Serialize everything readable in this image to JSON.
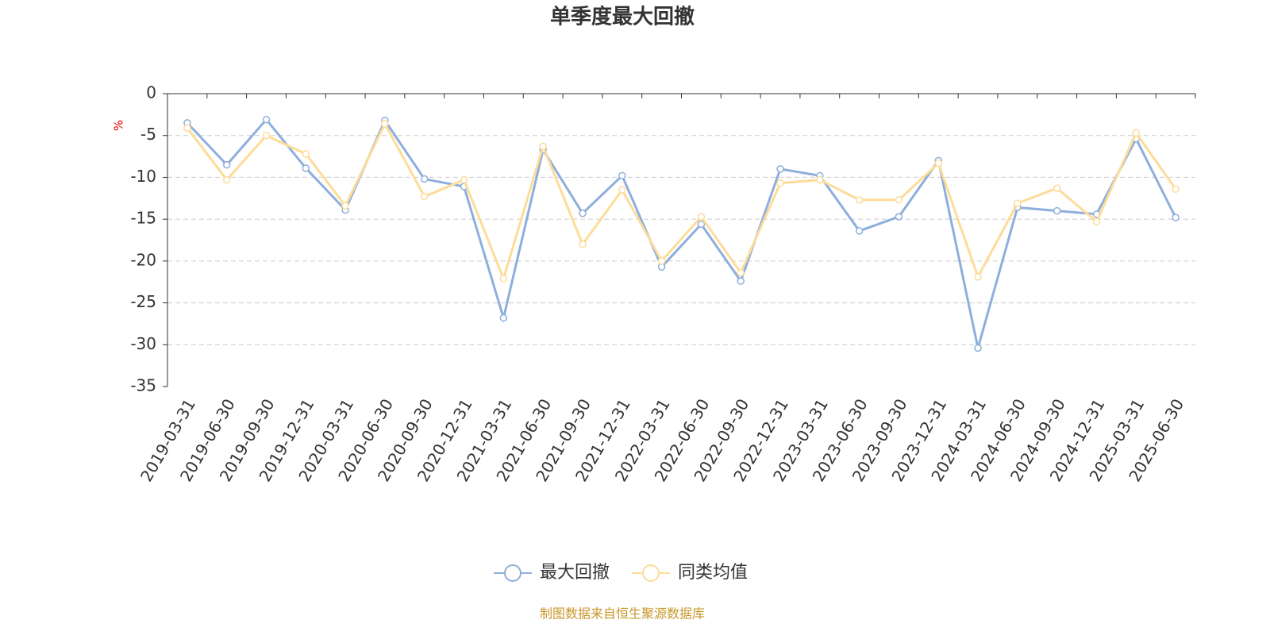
{
  "chart_data": {
    "type": "line",
    "title": "单季度最大回撤",
    "y_label": "%",
    "source": "制图数据来自恒生聚源数据库",
    "categories": [
      "2019-03-31",
      "2019-06-30",
      "2019-09-30",
      "2019-12-31",
      "2020-03-31",
      "2020-06-30",
      "2020-09-30",
      "2020-12-31",
      "2021-03-31",
      "2021-06-30",
      "2021-09-30",
      "2021-12-31",
      "2022-03-31",
      "2022-06-30",
      "2022-09-30",
      "2022-12-31",
      "2023-03-31",
      "2023-06-30",
      "2023-09-30",
      "2023-12-31",
      "2024-03-31",
      "2024-06-30",
      "2024-09-30",
      "2024-12-31",
      "2025-03-31",
      "2025-06-30"
    ],
    "series": [
      {
        "name": "最大回撤",
        "color": "#8eaedc",
        "values": [
          -3.5,
          -8.5,
          -3.1,
          -8.9,
          -13.9,
          -3.2,
          -10.2,
          -11.1,
          -26.8,
          -6.7,
          -14.3,
          -9.8,
          -20.7,
          -15.6,
          -22.4,
          -9.0,
          -9.8,
          -16.4,
          -14.7,
          -8.0,
          -30.4,
          -13.6,
          -14.0,
          -14.4,
          -5.4,
          -14.8
        ]
      },
      {
        "name": "同类均值",
        "color": "#fddc99",
        "values": [
          -4.1,
          -10.3,
          -5.0,
          -7.2,
          -13.4,
          -3.6,
          -12.3,
          -10.3,
          -22.1,
          -6.3,
          -18.0,
          -11.5,
          -20.0,
          -14.7,
          -21.4,
          -10.7,
          -10.3,
          -12.7,
          -12.7,
          -8.3,
          -21.9,
          -13.1,
          -11.3,
          -15.3,
          -4.7,
          -11.4
        ]
      }
    ],
    "ylim": [
      -35,
      0
    ],
    "yticks": [
      0,
      -5,
      -10,
      -15,
      -20,
      -25,
      -30,
      -35
    ],
    "grid": true
  }
}
